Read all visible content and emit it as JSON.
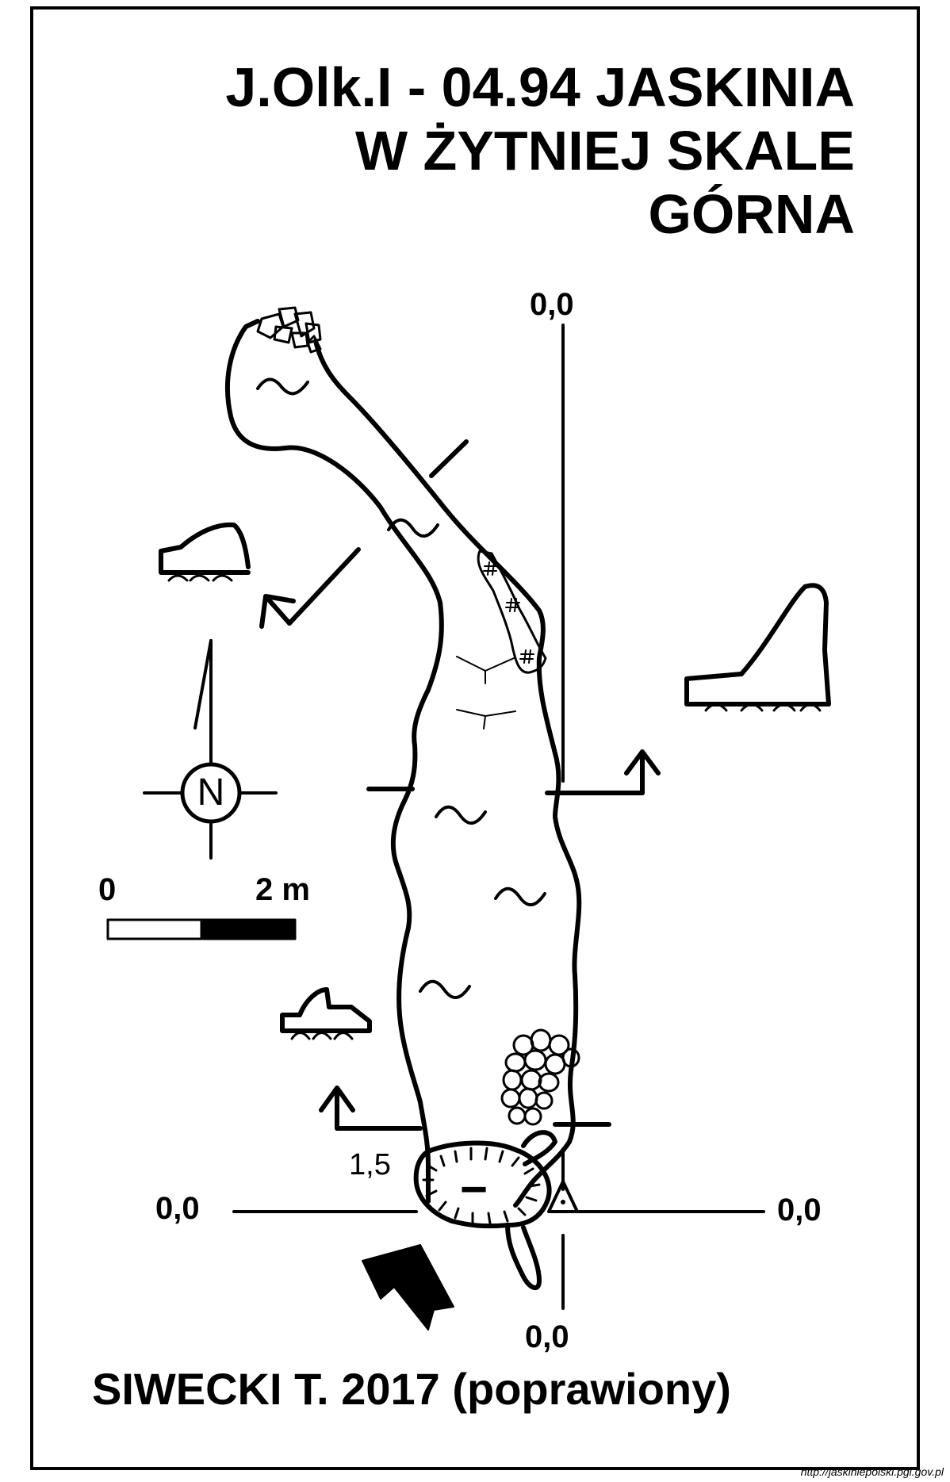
{
  "title": {
    "line1": "J.Olk.I - 04.94  JASKINIA",
    "line2": "W ŻYTNIEJ SKALE",
    "line3": "GÓRNA"
  },
  "datum_labels": {
    "top": "0,0",
    "left": "0,0",
    "right": "0,0",
    "bottom": "0,0"
  },
  "depth_marker": "1,5",
  "depression_symbol": "−",
  "north_label": "N",
  "scale_bar": {
    "start": "0",
    "end": "2 m"
  },
  "author": "SIWECKI T. 2017 (poprawiony)",
  "source": "http://jaskiniepolski.pgi.gov.pl",
  "colors": {
    "ink": "#000000",
    "paper": "#ffffff"
  }
}
